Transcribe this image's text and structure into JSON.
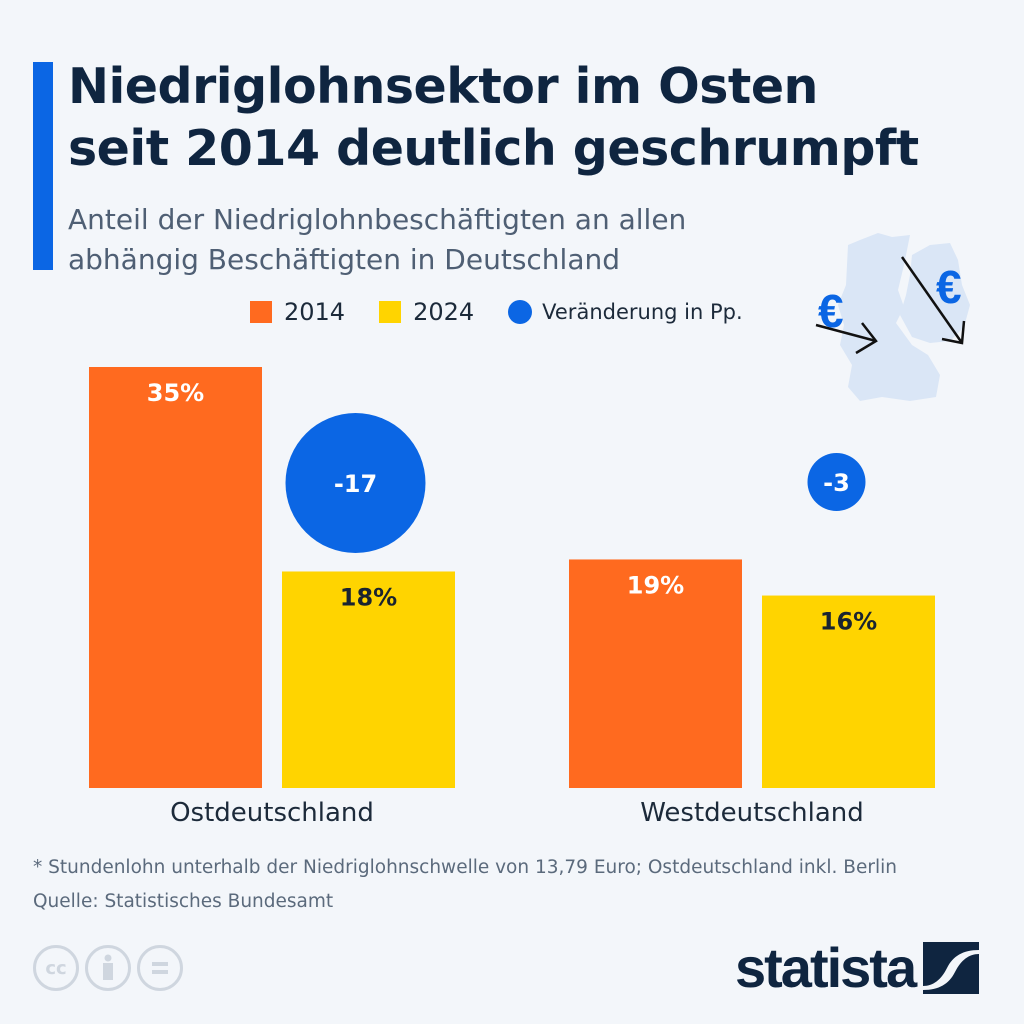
{
  "header": {
    "title_line1": "Niedriglohnsektor im Osten",
    "title_line2": "seit 2014 deutlich geschrumpft",
    "subtitle_line1": "Anteil der Niedriglohnbeschäftigten an allen",
    "subtitle_line2": "abhängig Beschäftigten in Deutschland"
  },
  "colors": {
    "accent": "#0b66e4",
    "series_2014": "#ff6a1f",
    "series_2024": "#ffd400",
    "change": "#0b66e4",
    "title": "#0f2540"
  },
  "legend": {
    "items": [
      {
        "label": "2014",
        "shape": "square",
        "color": "#ff6a1f"
      },
      {
        "label": "2024",
        "shape": "square",
        "color": "#ffd400"
      },
      {
        "label": "Veränderung in Pp.",
        "shape": "circle",
        "color": "#0b66e4"
      }
    ]
  },
  "chart_data": {
    "type": "bar",
    "title": "Niedriglohnsektor im Osten seit 2014 deutlich geschrumpft",
    "subtitle": "Anteil der Niedriglohnbeschäftigten an allen abhängig Beschäftigten in Deutschland",
    "categories": [
      "Ostdeutschland",
      "Westdeutschland"
    ],
    "series": [
      {
        "name": "2014",
        "values": [
          35,
          19
        ],
        "labels": [
          "35%",
          "19%"
        ],
        "color": "#ff6a1f"
      },
      {
        "name": "2024",
        "values": [
          18,
          16
        ],
        "labels": [
          "18%",
          "16%"
        ],
        "color": "#ffd400"
      }
    ],
    "change": {
      "name": "Veränderung in Pp.",
      "values": [
        -17,
        -3
      ],
      "labels": [
        "-17",
        "-3"
      ],
      "color": "#0b66e4"
    },
    "xlabel": "",
    "ylabel": "",
    "unit": "%",
    "ylim": [
      0,
      35
    ],
    "grid": false,
    "legend_position": "top"
  },
  "footer": {
    "footnote": "* Stundenlohn unterhalb der Niedriglohnschwelle von 13,79 Euro; Ostdeutschland inkl. Berlin",
    "source": "Quelle: Statistisches Bundesamt",
    "license_icons": [
      "cc-icon",
      "attribution-icon",
      "no-derivatives-icon"
    ],
    "cc_label": "cc",
    "brand": "statista"
  },
  "illustration": {
    "euro_symbol": "€"
  }
}
